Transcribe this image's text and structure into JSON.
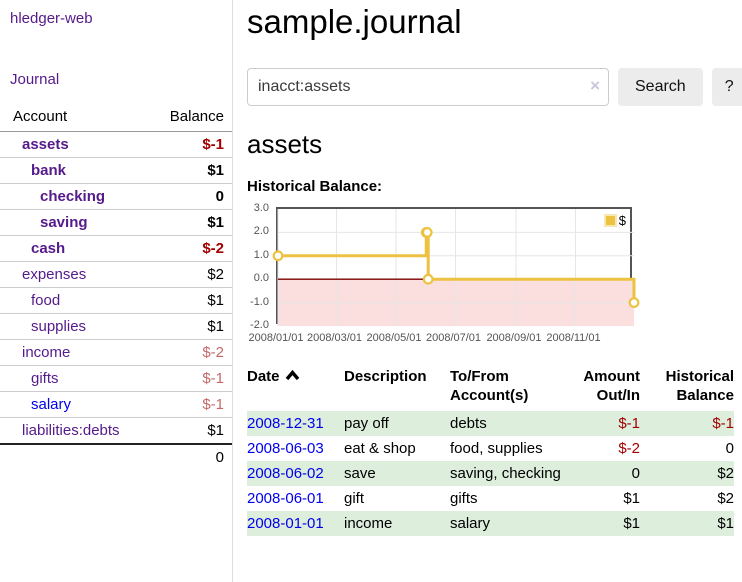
{
  "app": {
    "brand": "hledger-web",
    "nav_journal": "Journal"
  },
  "sidebar": {
    "header": {
      "account": "Account",
      "balance": "Balance"
    },
    "accounts": [
      {
        "name": "assets",
        "indent": 0,
        "bold": true,
        "color": "purple",
        "balance": "$-1",
        "balance_color": "red"
      },
      {
        "name": "bank",
        "indent": 1,
        "bold": true,
        "color": "purple",
        "balance": "$1",
        "balance_color": "default"
      },
      {
        "name": "checking",
        "indent": 2,
        "bold": true,
        "color": "purple",
        "balance": "0",
        "balance_color": "default"
      },
      {
        "name": "saving",
        "indent": 2,
        "bold": true,
        "color": "purple",
        "balance": "$1",
        "balance_color": "default"
      },
      {
        "name": "cash",
        "indent": 1,
        "bold": true,
        "color": "purple",
        "balance": "$-2",
        "balance_color": "red"
      },
      {
        "name": "expenses",
        "indent": 0,
        "bold": false,
        "color": "purple",
        "balance": "$2",
        "balance_color": "default"
      },
      {
        "name": "food",
        "indent": 1,
        "bold": false,
        "color": "purple",
        "balance": "$1",
        "balance_color": "default"
      },
      {
        "name": "supplies",
        "indent": 1,
        "bold": false,
        "color": "purple",
        "balance": "$1",
        "balance_color": "default"
      },
      {
        "name": "income",
        "indent": 0,
        "bold": false,
        "color": "purple",
        "balance": "$-2",
        "balance_color": "lightred"
      },
      {
        "name": "gifts",
        "indent": 1,
        "bold": false,
        "color": "purple",
        "balance": "$-1",
        "balance_color": "lightred"
      },
      {
        "name": "salary",
        "indent": 1,
        "bold": false,
        "color": "blue",
        "balance": "$-1",
        "balance_color": "lightred"
      },
      {
        "name": "liabilities:debts",
        "indent": 0,
        "bold": false,
        "color": "purple",
        "balance": "$1",
        "balance_color": "default"
      }
    ],
    "total": "0"
  },
  "header": {
    "title": "sample.journal"
  },
  "search": {
    "value": "inacct:assets",
    "clear_icon": "×",
    "button_label": "Search",
    "help_label": "?"
  },
  "main": {
    "account_heading": "assets"
  },
  "chart_data": {
    "type": "line",
    "step": true,
    "title": "Historical Balance:",
    "series": [
      {
        "name": "$",
        "color": "#edc240",
        "points": [
          {
            "date": "2008-01-01",
            "value": 1
          },
          {
            "date": "2008-06-01",
            "value": 2
          },
          {
            "date": "2008-06-02",
            "value": 2
          },
          {
            "date": "2008-06-03",
            "value": 0
          },
          {
            "date": "2008-12-31",
            "value": -1
          }
        ]
      }
    ],
    "x_range": [
      "2008-01-01",
      "2008-12-31"
    ],
    "x_ticks": [
      "2008/01/01",
      "2008/03/01",
      "2008/05/01",
      "2008/07/01",
      "2008/09/01",
      "2008/11/01"
    ],
    "y_ticks": [
      3.0,
      2.0,
      1.0,
      0.0,
      -1.0,
      -2.0
    ],
    "y_tick_labels": [
      "3.0",
      "2.0",
      "1.0",
      "0.0",
      "-1.0",
      "-2.0"
    ],
    "ylim": [
      -2,
      3
    ],
    "legend": {
      "label": "$",
      "position": "top-right"
    },
    "colors": {
      "grid": "#e6e6e6",
      "negative_fill": "#fbdede",
      "zero_line": "#7c0000",
      "border": "#545454",
      "marker_fill": "#ffffff"
    }
  },
  "register": {
    "columns": [
      {
        "key": "date",
        "lines": [
          "Date"
        ],
        "align": "l",
        "sorted": "asc"
      },
      {
        "key": "description",
        "lines": [
          "Description"
        ],
        "align": "l"
      },
      {
        "key": "accounts",
        "lines": [
          "To/From",
          "Account(s)"
        ],
        "align": "l"
      },
      {
        "key": "amount",
        "lines": [
          "Amount",
          "Out/In"
        ],
        "align": "r"
      },
      {
        "key": "balance",
        "lines": [
          "Historical",
          "Balance"
        ],
        "align": "r"
      }
    ],
    "rows": [
      {
        "date": "2008-12-31",
        "description": "pay off",
        "accounts": "debts",
        "amount": "$-1",
        "amount_negative": true,
        "balance": "$-1",
        "balance_negative": true
      },
      {
        "date": "2008-06-03",
        "description": "eat & shop",
        "accounts": "food, supplies",
        "amount": "$-2",
        "amount_negative": true,
        "balance": "0",
        "balance_negative": false
      },
      {
        "date": "2008-06-02",
        "description": "save",
        "accounts": "saving, checking",
        "amount": "0",
        "amount_negative": false,
        "balance": "$2",
        "balance_negative": false
      },
      {
        "date": "2008-06-01",
        "description": "gift",
        "accounts": "gifts",
        "amount": "$1",
        "amount_negative": false,
        "balance": "$2",
        "balance_negative": false
      },
      {
        "date": "2008-01-01",
        "description": "income",
        "accounts": "salary",
        "amount": "$1",
        "amount_negative": false,
        "balance": "$1",
        "balance_negative": false
      }
    ]
  }
}
